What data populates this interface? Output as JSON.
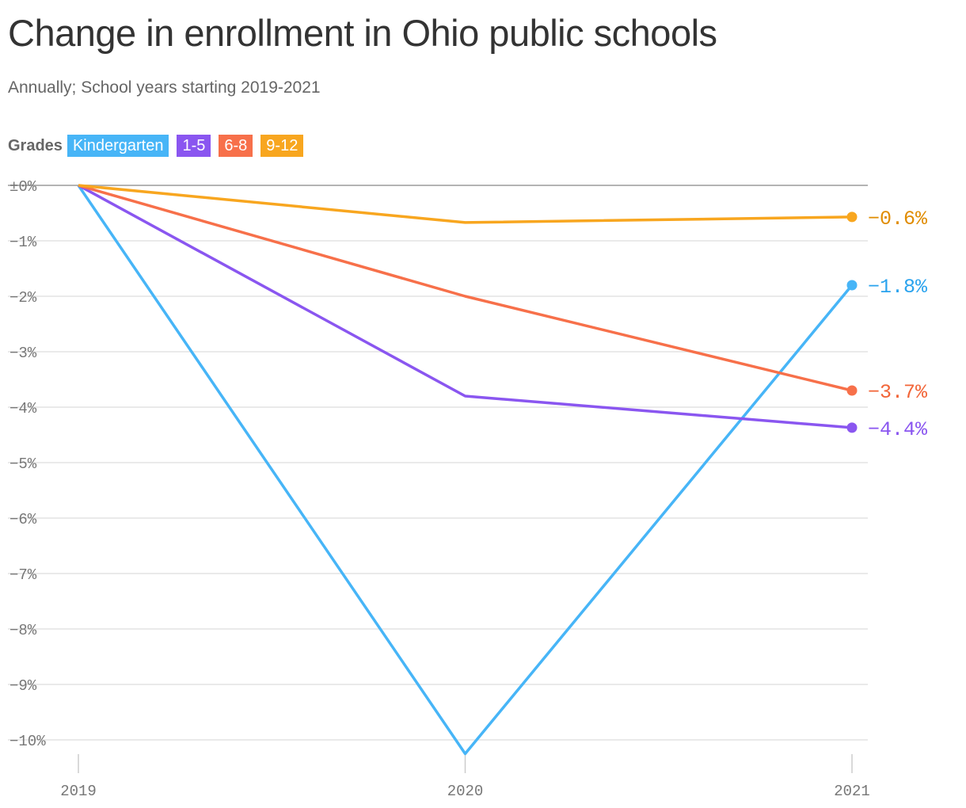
{
  "chart_data": {
    "type": "line",
    "title": "Change in enrollment in Ohio public schools",
    "subtitle": "Annually; School years starting 2019-2021",
    "legend_title": "Grades",
    "x": [
      "2019",
      "2020",
      "2021"
    ],
    "ylim": [
      -10.3,
      0
    ],
    "yticks": [
      {
        "value": 0,
        "label": "±0%"
      },
      {
        "value": -1,
        "label": "−1%"
      },
      {
        "value": -2,
        "label": "−2%"
      },
      {
        "value": -3,
        "label": "−3%"
      },
      {
        "value": -4,
        "label": "−4%"
      },
      {
        "value": -5,
        "label": "−5%"
      },
      {
        "value": -6,
        "label": "−6%"
      },
      {
        "value": -7,
        "label": "−7%"
      },
      {
        "value": -8,
        "label": "−8%"
      },
      {
        "value": -9,
        "label": "−9%"
      },
      {
        "value": -10,
        "label": "−10%"
      }
    ],
    "grid": true,
    "series": [
      {
        "name": "Kindergarten",
        "values": [
          0,
          -10.25,
          -1.8
        ],
        "end_label": "−1.8%",
        "color": "#47b5f7",
        "label_color": "#2aa3ee"
      },
      {
        "name": "1-5",
        "values": [
          0,
          -3.8,
          -4.37
        ],
        "end_label": "−4.4%",
        "color": "#8a56f0",
        "label_color": "#8a56f0"
      },
      {
        "name": "6-8",
        "values": [
          0,
          -2.0,
          -3.7
        ],
        "end_label": "−3.7%",
        "color": "#f7704a",
        "label_color": "#f26538"
      },
      {
        "name": "9-12",
        "values": [
          0,
          -0.67,
          -0.57
        ],
        "end_label": "−0.6%",
        "color": "#f8a61f",
        "label_color": "#e08c00"
      }
    ]
  }
}
